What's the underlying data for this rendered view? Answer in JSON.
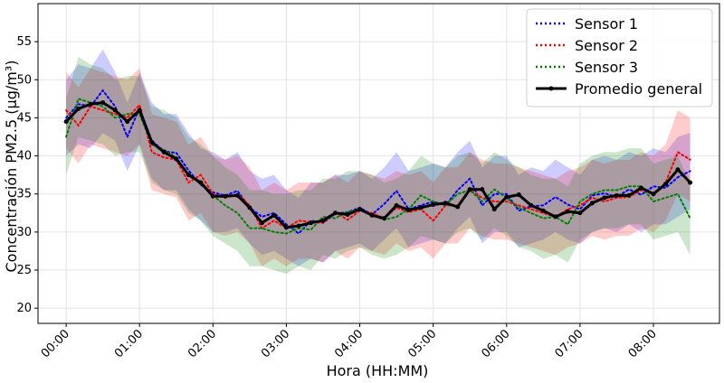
{
  "chart_data": {
    "type": "line",
    "xlabel": "Hora (HH:MM)",
    "ylabel": "Concentración PM2.5 (µg/m³)",
    "xlim_minutes": [
      -23,
      534
    ],
    "ylim": [
      18,
      60
    ],
    "x_ticks": [
      {
        "minute": 0,
        "label": "00:00"
      },
      {
        "minute": 60,
        "label": "01:00"
      },
      {
        "minute": 120,
        "label": "02:00"
      },
      {
        "minute": 180,
        "label": "03:00"
      },
      {
        "minute": 240,
        "label": "04:00"
      },
      {
        "minute": 300,
        "label": "05:00"
      },
      {
        "minute": 360,
        "label": "06:00"
      },
      {
        "minute": 420,
        "label": "07:00"
      },
      {
        "minute": 480,
        "label": "08:00"
      }
    ],
    "y_ticks": [
      20,
      25,
      30,
      35,
      40,
      45,
      50,
      55
    ],
    "grid": true,
    "legend_position": "top-right",
    "x_minutes": [
      0,
      10,
      20,
      30,
      40,
      50,
      60,
      70,
      80,
      90,
      100,
      110,
      120,
      130,
      140,
      150,
      160,
      170,
      180,
      190,
      200,
      210,
      220,
      230,
      240,
      250,
      260,
      270,
      280,
      290,
      300,
      310,
      320,
      330,
      340,
      350,
      360,
      370,
      380,
      390,
      400,
      410,
      420,
      430,
      440,
      450,
      460,
      470,
      480,
      490,
      500,
      510
    ],
    "series": [
      {
        "name": "Sensor 1",
        "color": "#0000ff",
        "style": "dotted",
        "values": [
          45.0,
          46.8,
          46.5,
          48.6,
          46.5,
          42.5,
          46.3,
          42.0,
          40.6,
          40.4,
          38.1,
          36.2,
          35.2,
          34.8,
          35.4,
          33.2,
          32.0,
          32.5,
          31.0,
          29.8,
          31.5,
          31.2,
          32.4,
          32.6,
          33.2,
          32.3,
          33.7,
          35.4,
          33.0,
          33.5,
          34.0,
          33.5,
          35.5,
          37.0,
          33.5,
          35.0,
          35.0,
          32.8,
          33.4,
          33.5,
          34.6,
          33.6,
          33.0,
          34.8,
          35.1,
          34.6,
          35.6,
          34.9,
          36.0,
          35.8,
          37.2,
          38.0
        ],
        "band_low": [
          40.0,
          41.5,
          41.0,
          43.0,
          42.0,
          38.0,
          41.5,
          37.0,
          35.5,
          35.5,
          33.0,
          31.5,
          30.0,
          30.0,
          30.5,
          28.5,
          27.0,
          27.5,
          26.5,
          25.5,
          26.5,
          26.0,
          27.5,
          28.0,
          28.5,
          27.5,
          29.0,
          30.5,
          28.0,
          28.5,
          29.0,
          28.5,
          30.5,
          32.0,
          28.5,
          30.0,
          30.0,
          28.0,
          28.5,
          29.0,
          30.0,
          29.0,
          28.5,
          30.0,
          30.5,
          30.0,
          31.0,
          30.0,
          31.0,
          31.0,
          32.0,
          33.0
        ],
        "band_high": [
          50.0,
          52.0,
          51.5,
          54.0,
          51.0,
          47.0,
          51.0,
          47.0,
          45.5,
          45.5,
          43.0,
          41.0,
          40.5,
          39.5,
          40.5,
          38.0,
          37.0,
          37.5,
          35.5,
          34.5,
          36.5,
          36.5,
          37.5,
          37.5,
          38.0,
          37.0,
          38.5,
          40.5,
          38.0,
          38.5,
          39.0,
          38.5,
          40.5,
          42.0,
          38.5,
          40.0,
          40.0,
          37.5,
          38.5,
          38.0,
          39.5,
          38.5,
          37.5,
          39.5,
          40.0,
          39.5,
          40.5,
          40.0,
          41.0,
          40.5,
          42.5,
          43.0
        ]
      },
      {
        "name": "Sensor 2",
        "color": "#ff0000",
        "style": "dotted",
        "values": [
          46.0,
          44.0,
          46.5,
          46.0,
          45.5,
          45.0,
          46.7,
          40.5,
          39.8,
          39.5,
          36.5,
          37.5,
          35.0,
          34.5,
          35.0,
          33.5,
          30.5,
          31.5,
          30.5,
          31.5,
          31.3,
          31.2,
          32.6,
          31.6,
          32.8,
          32.5,
          31.8,
          33.2,
          32.6,
          33.0,
          31.5,
          33.5,
          33.5,
          35.5,
          34.5,
          34.0,
          34.0,
          33.5,
          33.0,
          32.5,
          32.0,
          33.0,
          33.5,
          34.5,
          34.0,
          34.5,
          34.6,
          35.5,
          35.0,
          36.5,
          40.5,
          39.5
        ],
        "band_low": [
          41.0,
          39.0,
          41.5,
          41.0,
          40.5,
          40.0,
          41.5,
          35.5,
          35.0,
          34.5,
          31.5,
          32.5,
          30.0,
          29.5,
          30.0,
          28.5,
          25.5,
          26.5,
          25.5,
          26.5,
          26.5,
          26.0,
          27.5,
          26.5,
          28.0,
          27.5,
          27.0,
          28.5,
          27.5,
          28.0,
          26.5,
          28.5,
          28.5,
          30.5,
          29.5,
          29.0,
          29.0,
          28.5,
          28.0,
          27.5,
          27.0,
          28.0,
          28.5,
          29.5,
          29.0,
          29.5,
          29.5,
          30.5,
          30.0,
          31.5,
          35.0,
          34.0
        ],
        "band_high": [
          51.0,
          49.0,
          51.5,
          51.0,
          50.5,
          50.0,
          51.5,
          45.5,
          45.0,
          44.5,
          41.5,
          42.5,
          40.0,
          39.5,
          40.0,
          38.5,
          35.5,
          36.5,
          35.5,
          36.5,
          36.5,
          36.5,
          37.5,
          36.5,
          38.0,
          37.5,
          37.0,
          38.0,
          37.5,
          38.0,
          36.5,
          38.5,
          38.5,
          40.5,
          39.5,
          39.0,
          39.0,
          38.5,
          38.0,
          37.5,
          37.0,
          38.0,
          38.5,
          39.5,
          39.0,
          39.5,
          39.5,
          40.5,
          40.0,
          41.5,
          46.0,
          45.0
        ]
      },
      {
        "name": "Sensor 3",
        "color": "#008000",
        "style": "dotted",
        "values": [
          42.5,
          47.5,
          47.0,
          46.5,
          45.0,
          45.5,
          45.5,
          41.5,
          40.8,
          39.8,
          37.5,
          36.3,
          34.8,
          33.5,
          32.5,
          30.5,
          30.5,
          30.0,
          29.8,
          30.5,
          30.3,
          32.0,
          31.8,
          32.7,
          32.9,
          32.2,
          31.6,
          32.0,
          33.0,
          34.8,
          34.0,
          33.5,
          35.0,
          35.5,
          34.0,
          35.6,
          34.5,
          33.2,
          32.5,
          31.8,
          32.0,
          31.0,
          34.0,
          35.0,
          35.5,
          35.5,
          36.0,
          36.0,
          34.0,
          34.5,
          35.0,
          31.8
        ],
        "band_low": [
          37.5,
          42.5,
          42.0,
          41.5,
          40.0,
          40.5,
          40.5,
          36.5,
          35.5,
          35.0,
          32.5,
          31.5,
          29.5,
          28.5,
          27.5,
          25.5,
          25.5,
          25.0,
          24.5,
          25.5,
          25.0,
          27.0,
          26.5,
          27.5,
          28.0,
          27.0,
          26.5,
          27.0,
          28.0,
          29.5,
          29.0,
          28.5,
          30.0,
          30.5,
          29.0,
          30.5,
          29.5,
          28.0,
          27.5,
          26.5,
          27.0,
          26.0,
          29.0,
          30.0,
          30.5,
          30.5,
          31.0,
          31.0,
          29.0,
          29.5,
          30.0,
          27.0
        ],
        "band_high": [
          47.5,
          53.0,
          52.0,
          51.5,
          50.0,
          50.5,
          50.5,
          46.5,
          46.0,
          45.0,
          42.5,
          41.5,
          40.0,
          38.5,
          37.5,
          35.5,
          35.5,
          35.0,
          35.0,
          35.5,
          35.5,
          37.0,
          37.0,
          38.0,
          38.0,
          37.5,
          36.5,
          37.0,
          38.0,
          40.0,
          39.0,
          38.5,
          40.0,
          40.5,
          39.0,
          40.5,
          39.5,
          38.5,
          37.5,
          37.0,
          37.0,
          36.0,
          39.0,
          40.0,
          40.5,
          40.5,
          41.0,
          41.0,
          39.0,
          39.5,
          40.0,
          36.5
        ]
      },
      {
        "name": "Promedio general",
        "color": "#000000",
        "style": "solid-markers",
        "values": [
          44.5,
          46.2,
          46.8,
          47.0,
          46.0,
          44.5,
          46.0,
          41.8,
          40.5,
          39.6,
          37.5,
          36.5,
          34.7,
          34.7,
          34.8,
          33.2,
          31.2,
          32.2,
          30.6,
          30.8,
          31.2,
          31.5,
          32.5,
          32.3,
          33.0,
          32.2,
          31.8,
          33.5,
          32.9,
          33.2,
          33.6,
          33.8,
          33.3,
          35.6,
          35.6,
          33.0,
          34.6,
          34.9,
          33.5,
          32.8,
          32.0,
          32.7,
          32.5,
          33.8,
          34.5,
          34.8,
          34.8,
          35.8,
          35.0,
          36.3,
          38.2,
          36.5
        ]
      }
    ]
  }
}
